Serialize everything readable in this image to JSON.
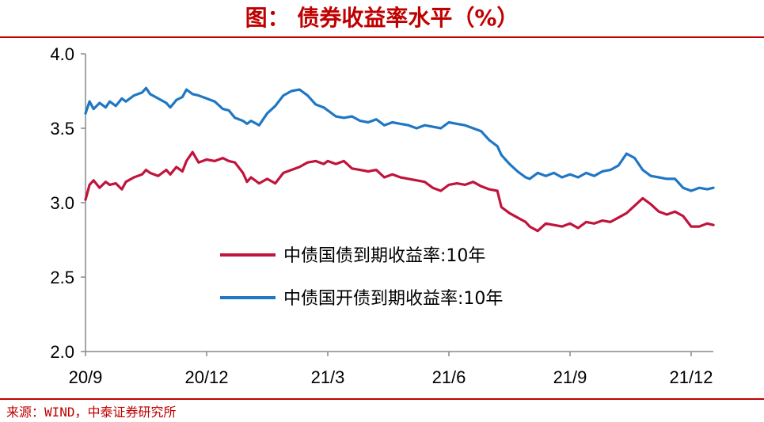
{
  "header": {
    "title": "图：  债券收益率水平（%）"
  },
  "footer": {
    "source": "来源：WIND，中泰证券研究所"
  },
  "colors": {
    "title": "#c00000",
    "series_red": "#c0143c",
    "series_blue": "#1f77c4",
    "axis": "#888888"
  },
  "chart_data": {
    "type": "line",
    "title": "图：  债券收益率水平（%）",
    "xlabel": "",
    "ylabel": "",
    "ylim": [
      2.0,
      4.0
    ],
    "grid": false,
    "legend_position": "center-right",
    "y_ticks": [
      "2.0",
      "2.5",
      "3.0",
      "3.5",
      "4.0"
    ],
    "x_ticks": [
      "20/9",
      "20/12",
      "21/3",
      "21/6",
      "21/9",
      "21/12"
    ],
    "x_tick_pos": [
      0,
      3,
      6,
      9,
      12,
      15
    ],
    "x_end": 15.55,
    "series": [
      {
        "name": "中债国债到期收益率:10年",
        "color": "#c0143c",
        "x": [
          0,
          0.1,
          0.2,
          0.35,
          0.5,
          0.6,
          0.75,
          0.9,
          1.0,
          1.2,
          1.4,
          1.5,
          1.6,
          1.8,
          2.0,
          2.1,
          2.25,
          2.4,
          2.5,
          2.65,
          2.8,
          3.0,
          3.2,
          3.4,
          3.55,
          3.7,
          3.9,
          4.0,
          4.1,
          4.3,
          4.5,
          4.7,
          4.9,
          5.1,
          5.3,
          5.5,
          5.7,
          5.9,
          6.0,
          6.2,
          6.4,
          6.6,
          6.8,
          7.0,
          7.2,
          7.4,
          7.6,
          7.8,
          8.0,
          8.2,
          8.4,
          8.6,
          8.8,
          9.0,
          9.2,
          9.4,
          9.6,
          9.8,
          10.0,
          10.2,
          10.3,
          10.5,
          10.7,
          10.9,
          11.0,
          11.2,
          11.4,
          11.6,
          11.8,
          12.0,
          12.2,
          12.4,
          12.6,
          12.8,
          13.0,
          13.2,
          13.4,
          13.6,
          13.8,
          14.0,
          14.2,
          14.4,
          14.6,
          14.8,
          15.0,
          15.2,
          15.4,
          15.55
        ],
        "y": [
          3.02,
          3.12,
          3.15,
          3.1,
          3.14,
          3.12,
          3.13,
          3.09,
          3.14,
          3.17,
          3.19,
          3.22,
          3.2,
          3.18,
          3.22,
          3.19,
          3.24,
          3.21,
          3.28,
          3.34,
          3.27,
          3.29,
          3.28,
          3.3,
          3.28,
          3.27,
          3.2,
          3.14,
          3.17,
          3.13,
          3.16,
          3.13,
          3.2,
          3.22,
          3.24,
          3.27,
          3.28,
          3.26,
          3.28,
          3.26,
          3.28,
          3.23,
          3.22,
          3.21,
          3.22,
          3.17,
          3.19,
          3.17,
          3.16,
          3.15,
          3.14,
          3.1,
          3.08,
          3.12,
          3.13,
          3.12,
          3.14,
          3.11,
          3.09,
          3.08,
          2.97,
          2.93,
          2.9,
          2.87,
          2.84,
          2.81,
          2.86,
          2.85,
          2.84,
          2.86,
          2.83,
          2.87,
          2.86,
          2.88,
          2.87,
          2.9,
          2.93,
          2.98,
          3.03,
          2.99,
          2.94,
          2.92,
          2.94,
          2.91,
          2.84,
          2.84,
          2.86,
          2.85
        ]
      },
      {
        "name": "中债国开债到期收益率:10年",
        "color": "#1f77c4",
        "x": [
          0,
          0.1,
          0.2,
          0.35,
          0.5,
          0.6,
          0.75,
          0.9,
          1.0,
          1.2,
          1.4,
          1.5,
          1.6,
          1.8,
          2.0,
          2.1,
          2.25,
          2.4,
          2.5,
          2.65,
          2.8,
          3.0,
          3.2,
          3.4,
          3.55,
          3.7,
          3.9,
          4.0,
          4.1,
          4.3,
          4.5,
          4.7,
          4.9,
          5.1,
          5.3,
          5.5,
          5.7,
          5.9,
          6.0,
          6.2,
          6.4,
          6.6,
          6.8,
          7.0,
          7.2,
          7.4,
          7.6,
          7.8,
          8.0,
          8.2,
          8.4,
          8.6,
          8.8,
          9.0,
          9.2,
          9.4,
          9.6,
          9.8,
          10.0,
          10.2,
          10.3,
          10.5,
          10.7,
          10.9,
          11.0,
          11.2,
          11.4,
          11.6,
          11.8,
          12.0,
          12.2,
          12.4,
          12.6,
          12.8,
          13.0,
          13.2,
          13.4,
          13.6,
          13.8,
          14.0,
          14.2,
          14.4,
          14.6,
          14.8,
          15.0,
          15.2,
          15.4,
          15.55
        ],
        "y": [
          3.6,
          3.68,
          3.63,
          3.67,
          3.64,
          3.68,
          3.65,
          3.7,
          3.68,
          3.72,
          3.74,
          3.77,
          3.73,
          3.7,
          3.67,
          3.64,
          3.69,
          3.71,
          3.76,
          3.73,
          3.72,
          3.7,
          3.68,
          3.63,
          3.62,
          3.57,
          3.55,
          3.53,
          3.55,
          3.52,
          3.6,
          3.65,
          3.72,
          3.75,
          3.76,
          3.72,
          3.66,
          3.64,
          3.62,
          3.58,
          3.57,
          3.58,
          3.55,
          3.54,
          3.56,
          3.52,
          3.54,
          3.53,
          3.52,
          3.5,
          3.52,
          3.51,
          3.5,
          3.54,
          3.53,
          3.52,
          3.5,
          3.48,
          3.42,
          3.38,
          3.32,
          3.26,
          3.21,
          3.17,
          3.16,
          3.2,
          3.18,
          3.2,
          3.17,
          3.19,
          3.17,
          3.2,
          3.18,
          3.21,
          3.22,
          3.25,
          3.33,
          3.3,
          3.22,
          3.18,
          3.17,
          3.16,
          3.16,
          3.1,
          3.08,
          3.1,
          3.09,
          3.1
        ]
      }
    ]
  }
}
